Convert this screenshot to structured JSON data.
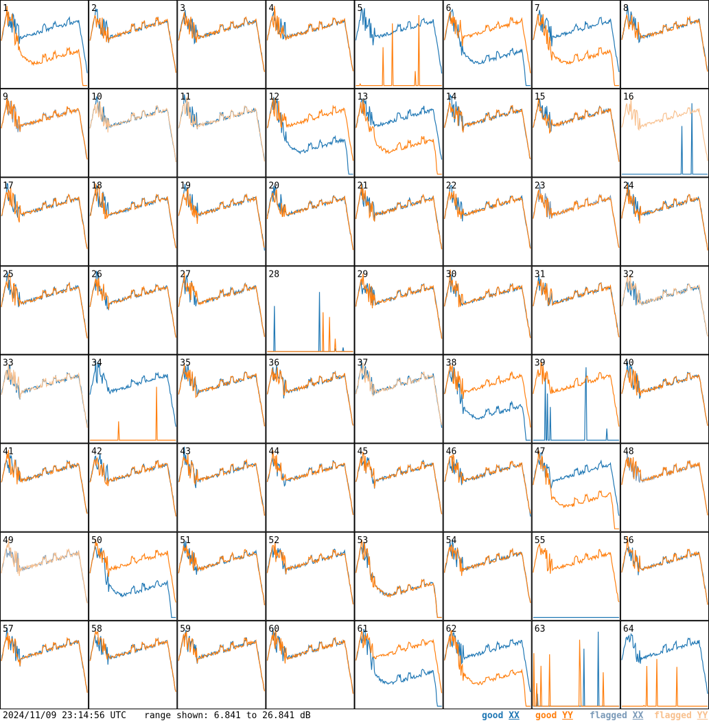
{
  "chart_data": {
    "type": "line",
    "grid": {
      "rows": 8,
      "cols": 8
    },
    "panel_labels": [
      "1",
      "2",
      "3",
      "4",
      "5",
      "6",
      "7",
      "8",
      "9",
      "10",
      "11",
      "12",
      "13",
      "14",
      "15",
      "16",
      "17",
      "18",
      "19",
      "20",
      "21",
      "22",
      "23",
      "24",
      "25",
      "26",
      "27",
      "28",
      "29",
      "30",
      "31",
      "32",
      "33",
      "34",
      "35",
      "36",
      "37",
      "38",
      "39",
      "40",
      "41",
      "42",
      "43",
      "44",
      "45",
      "46",
      "47",
      "48",
      "49",
      "50",
      "51",
      "52",
      "53",
      "54",
      "55",
      "56",
      "57",
      "58",
      "59",
      "60",
      "61",
      "62",
      "63",
      "64"
    ],
    "ylim": [
      6.841,
      26.841
    ],
    "y_unit": "dB",
    "flagged_xx_panels": [
      9,
      23,
      48,
      49
    ],
    "flagged_yy_panels": [
      10,
      11,
      16,
      32,
      33,
      37,
      49
    ],
    "anomalous_panels": {
      "xx_dropout": [
        6,
        12,
        61,
        38,
        50,
        53
      ],
      "yy_dropout": [
        1,
        7,
        13,
        47,
        53,
        62
      ],
      "xx_dead": [
        16,
        28,
        39,
        55,
        63
      ],
      "yy_dead": [
        5,
        28,
        34,
        63,
        64
      ]
    },
    "series": [
      {
        "name": "good XX",
        "key": "good_xx",
        "color": "#1f77b4"
      },
      {
        "name": "good YY",
        "key": "good_yy",
        "color": "#ff7f0e"
      },
      {
        "name": "flagged XX",
        "key": "flagged_xx",
        "color": "#7b9ab8"
      },
      {
        "name": "flagged YY",
        "key": "flagged_yy",
        "color": "#f8c08e"
      }
    ]
  },
  "footer": {
    "timestamp": "2024/11/09 23:14:56 UTC",
    "range": "range shown: 6.841 to 26.841 dB"
  },
  "legend": {
    "good_xx": "good",
    "good_xx_sw": "XX",
    "good_yy": "good",
    "good_yy_sw": "YY",
    "flagged_xx": "flagged",
    "flagged_xx_sw": "XX",
    "flagged_yy": "flagged",
    "flagged_yy_sw": "YY",
    "colors": {
      "good_xx": "#1f77b4",
      "good_yy": "#ff7f0e",
      "flagged_xx": "#7b9ab8",
      "flagged_yy": "#f8c08e"
    }
  }
}
